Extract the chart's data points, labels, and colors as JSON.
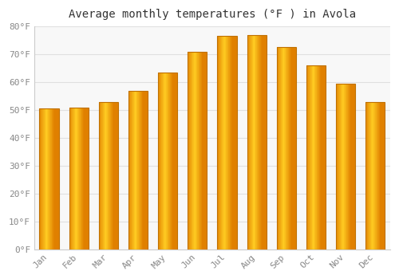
{
  "title": "Average monthly temperatures (°F ) in Avola",
  "months": [
    "Jan",
    "Feb",
    "Mar",
    "Apr",
    "May",
    "Jun",
    "Jul",
    "Aug",
    "Sep",
    "Oct",
    "Nov",
    "Dec"
  ],
  "values": [
    50.5,
    51.0,
    53.0,
    57.0,
    63.5,
    71.0,
    76.5,
    77.0,
    72.5,
    66.0,
    59.5,
    53.0
  ],
  "bar_color_center": "#FFB300",
  "bar_color_edge": "#E08000",
  "ylim": [
    0,
    80
  ],
  "yticks": [
    0,
    10,
    20,
    30,
    40,
    50,
    60,
    70,
    80
  ],
  "ytick_labels": [
    "0°F",
    "10°F",
    "20°F",
    "30°F",
    "40°F",
    "50°F",
    "60°F",
    "70°F",
    "80°F"
  ],
  "background_color": "#ffffff",
  "plot_bg_color": "#f8f8f8",
  "grid_color": "#e0e0e0",
  "title_fontsize": 10,
  "tick_fontsize": 8,
  "tick_color": "#888888",
  "title_color": "#333333"
}
